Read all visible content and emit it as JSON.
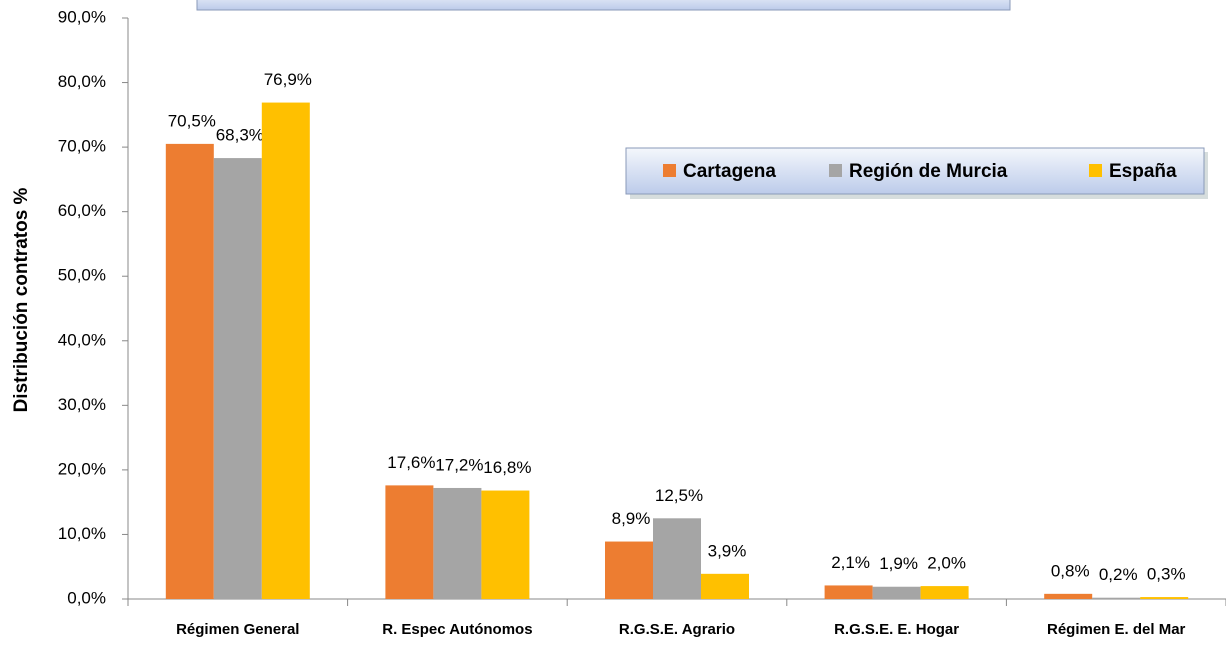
{
  "chart_data": {
    "type": "bar",
    "y_label": "Distribución contratos %",
    "categories": [
      "Régimen General",
      "R. Espec  Autónomos",
      "R.G.S.E. Agrario",
      "R.G.S.E. E. Hogar",
      "Régimen E. del Mar"
    ],
    "series": [
      {
        "name": "Cartagena",
        "color": "#ED7D31",
        "values": [
          70.5,
          17.6,
          8.9,
          2.1,
          0.8
        ],
        "value_labels": [
          "70,5%",
          "17,6%",
          "8,9%",
          "2,1%",
          "0,8%"
        ]
      },
      {
        "name": "Región de Murcia",
        "color": "#A5A5A5",
        "values": [
          68.3,
          17.2,
          12.5,
          1.9,
          0.2
        ],
        "value_labels": [
          "68,3%",
          "17,2%",
          "12,5%",
          "1,9%",
          "0,2%"
        ]
      },
      {
        "name": "España",
        "color": "#FFC000",
        "values": [
          76.9,
          16.8,
          3.9,
          2.0,
          0.3
        ],
        "value_labels": [
          "76,9%",
          "16,8%",
          "3,9%",
          "2,0%",
          "0,3%"
        ]
      }
    ],
    "ylim": [
      0,
      90
    ],
    "yticks": [
      {
        "value": 0,
        "label": "0,0%"
      },
      {
        "value": 10,
        "label": "10,0%"
      },
      {
        "value": 20,
        "label": "20,0%"
      },
      {
        "value": 30,
        "label": "30,0%"
      },
      {
        "value": 40,
        "label": "40,0%"
      },
      {
        "value": 50,
        "label": "50,0%"
      },
      {
        "value": 60,
        "label": "60,0%"
      },
      {
        "value": 70,
        "label": "70,0%"
      },
      {
        "value": 80,
        "label": "80,0%"
      },
      {
        "value": 90,
        "label": "90,0%"
      }
    ],
    "grid": false,
    "legend": "upper right"
  }
}
